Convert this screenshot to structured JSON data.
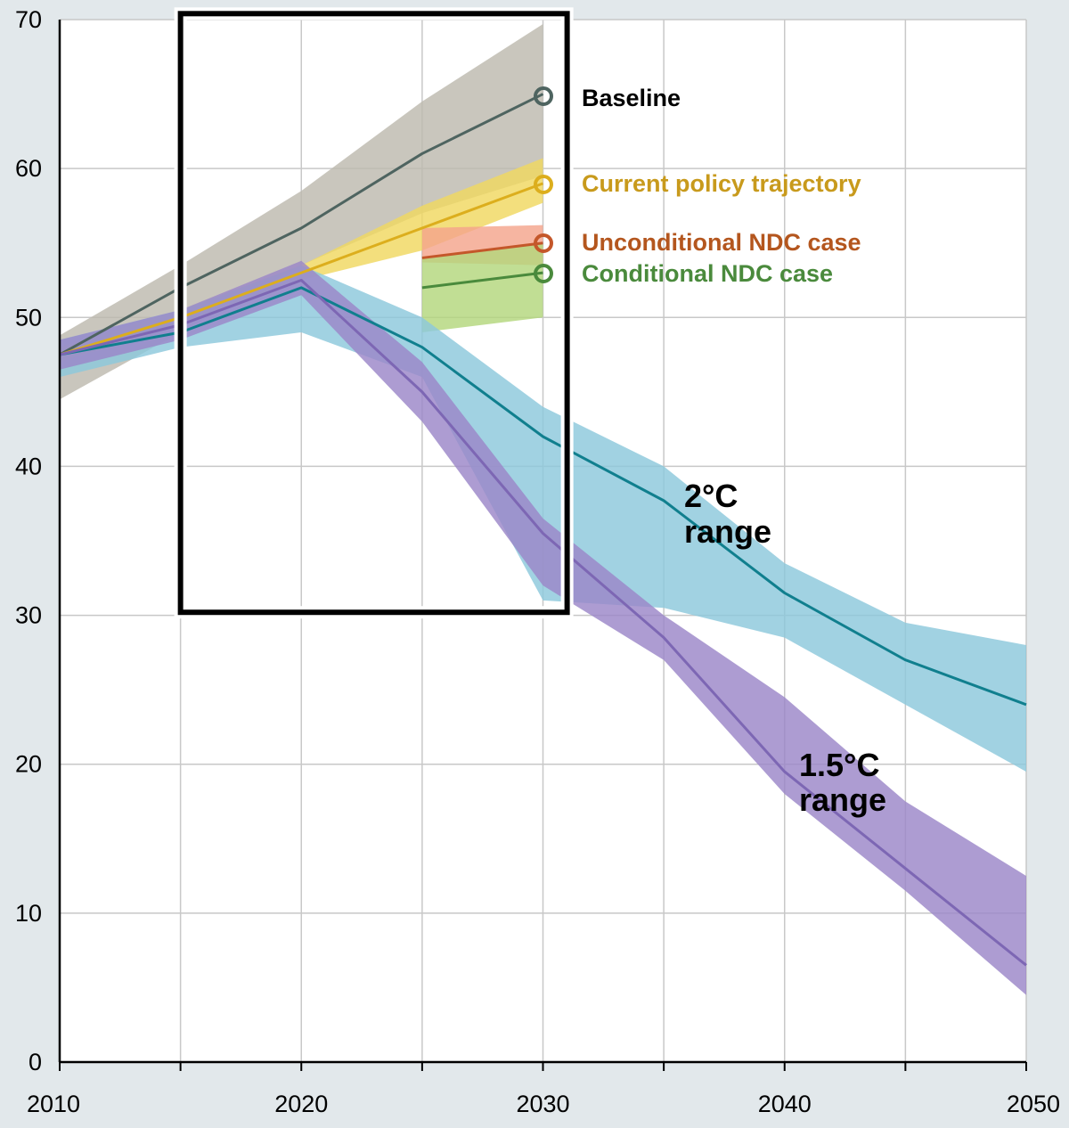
{
  "chart_data": {
    "type": "area",
    "title": "",
    "xlabel": "",
    "ylabel": "",
    "xlim": [
      2010,
      2050
    ],
    "ylim": [
      0,
      70
    ],
    "x_ticks": [
      "2010",
      "2020",
      "2030",
      "2040",
      "2050"
    ],
    "y_ticks": [
      "0",
      "10",
      "20",
      "30",
      "40",
      "50",
      "60",
      "70"
    ],
    "grid": true,
    "highlight_box": {
      "x": [
        2015,
        2031
      ],
      "y": [
        30.2,
        70.4
      ]
    },
    "series": [
      {
        "name": "Baseline",
        "color": "#4e6460",
        "band_color": "#bdb9ae",
        "x": [
          2010,
          2015,
          2020,
          2025,
          2030
        ],
        "values": [
          47.5,
          52,
          56,
          61,
          65
        ],
        "lower": [
          44.5,
          49,
          53.5,
          57,
          59.5
        ],
        "upper": [
          48.8,
          53.5,
          58.5,
          64.5,
          69.7
        ]
      },
      {
        "name": "Current policy trajectory",
        "color": "#dcae1d",
        "band_color": "#f0d860",
        "label_color": "#c89a1c",
        "x": [
          2010,
          2015,
          2020,
          2025,
          2030
        ],
        "values": [
          47.5,
          50,
          53,
          56,
          59
        ],
        "lower": [
          47,
          49.5,
          52.5,
          54.5,
          57.7
        ],
        "upper": [
          48,
          50.5,
          53.5,
          57.5,
          60.7
        ]
      },
      {
        "name": "Unconditional NDC case",
        "color": "#c4572a",
        "band_color": "#f4a58c",
        "label_color": "#b4561e",
        "x": [
          2025,
          2030
        ],
        "values": [
          54,
          55
        ],
        "lower": [
          53.7,
          53.5
        ],
        "upper": [
          56,
          56.2
        ]
      },
      {
        "name": "Conditional NDC case",
        "color": "#4a8a3c",
        "band_color": "#b3d77c",
        "label_color": "#4a8a3c",
        "x": [
          2025,
          2030
        ],
        "values": [
          52,
          53
        ],
        "lower": [
          49,
          50
        ],
        "upper": [
          54,
          55
        ]
      },
      {
        "name": "2°C range",
        "color": "#107f8e",
        "band_color": "#8cc8dc",
        "x": [
          2010,
          2015,
          2020,
          2025,
          2030,
          2035,
          2040,
          2045,
          2050
        ],
        "values": [
          47.5,
          49,
          52,
          48,
          42,
          37.7,
          31.5,
          27,
          24
        ],
        "lower": [
          46,
          48,
          49,
          46,
          31,
          30.5,
          28.5,
          24,
          19.5
        ],
        "upper": [
          48.5,
          50.5,
          53.5,
          50,
          44,
          40,
          33.5,
          29.5,
          28
        ]
      },
      {
        "name": "1.5°C range",
        "color": "#7d67b4",
        "band_color": "#9b86c8",
        "x": [
          2010,
          2015,
          2020,
          2025,
          2030,
          2035,
          2040,
          2045,
          2050
        ],
        "values": [
          47.5,
          49.5,
          52.5,
          45,
          35.5,
          28.5,
          19.5,
          13,
          6.5
        ],
        "lower": [
          46.5,
          48.5,
          51.5,
          43,
          32,
          27,
          18,
          11.5,
          4.5
        ],
        "upper": [
          48.5,
          50.5,
          53.8,
          47,
          36.5,
          30,
          24.5,
          17.5,
          12.5
        ]
      }
    ],
    "annotations": {
      "baseline": "Baseline",
      "current_policy": "Current policy trajectory",
      "unconditional_ndc": "Unconditional NDC case",
      "conditional_ndc": "Conditional NDC case",
      "range_2c_line1": "2°C",
      "range_2c_line2": "range",
      "range_15c_line1": "1.5°C",
      "range_15c_line2": "range"
    }
  }
}
